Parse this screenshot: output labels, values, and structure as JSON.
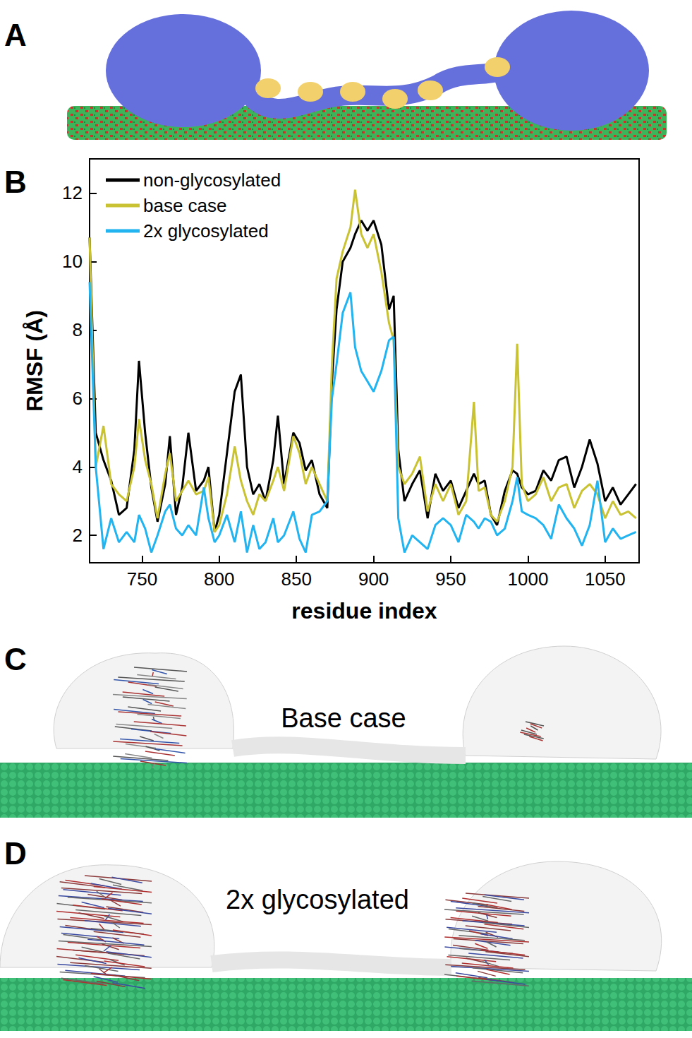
{
  "panel_labels": [
    "A",
    "B",
    "C",
    "D"
  ],
  "renderings": [
    {
      "panel": "C",
      "caption": "Base case"
    },
    {
      "panel": "D",
      "caption": "2x glycosylated"
    }
  ],
  "chart_data": {
    "type": "line",
    "x_label": "residue index",
    "y_label": "RMSF (Å)",
    "xlim": [
      716,
      1072
    ],
    "xticks": [
      750,
      800,
      850,
      900,
      950,
      1000,
      1050
    ],
    "ylim": [
      1.2,
      13
    ],
    "yticks": [
      2,
      4,
      6,
      8,
      10,
      12
    ],
    "grid": false,
    "legend": "top-left",
    "x": [
      716,
      720,
      725,
      730,
      735,
      740,
      745,
      748,
      752,
      756,
      760,
      765,
      768,
      772,
      776,
      780,
      785,
      790,
      793,
      797,
      800,
      805,
      810,
      814,
      818,
      822,
      826,
      830,
      835,
      838,
      842,
      848,
      852,
      856,
      860,
      865,
      870,
      873,
      876,
      880,
      885,
      888,
      892,
      896,
      900,
      905,
      910,
      913,
      916,
      920,
      925,
      930,
      935,
      940,
      945,
      950,
      955,
      960,
      965,
      968,
      972,
      976,
      980,
      985,
      990,
      993,
      996,
      1000,
      1005,
      1010,
      1015,
      1020,
      1025,
      1030,
      1035,
      1040,
      1045,
      1050,
      1055,
      1060,
      1065,
      1070
    ],
    "series": [
      {
        "name": "non-glycosylated",
        "color": "#000000",
        "values": [
          10.7,
          5.0,
          4.2,
          3.6,
          2.6,
          2.8,
          4.5,
          7.1,
          5.0,
          3.4,
          2.4,
          3.5,
          4.9,
          2.6,
          3.4,
          5.0,
          3.3,
          3.6,
          4.0,
          2.1,
          2.6,
          4.4,
          6.2,
          6.7,
          4.0,
          3.2,
          3.5,
          3.0,
          4.2,
          5.5,
          3.5,
          5.0,
          4.7,
          3.9,
          4.2,
          3.2,
          2.8,
          6.5,
          8.6,
          10.0,
          10.4,
          10.8,
          11.2,
          10.9,
          11.2,
          10.5,
          8.6,
          9.0,
          4.5,
          3.0,
          3.5,
          3.9,
          2.5,
          3.8,
          3.3,
          3.6,
          2.8,
          3.3,
          3.8,
          3.5,
          3.6,
          2.6,
          2.3,
          3.3,
          3.9,
          3.8,
          3.4,
          3.2,
          3.3,
          3.9,
          3.6,
          4.2,
          4.3,
          3.4,
          4.0,
          4.8,
          4.1,
          3.0,
          3.4,
          2.9,
          3.2,
          3.5
        ]
      },
      {
        "name": "base case",
        "color": "#c9c232",
        "values": [
          10.7,
          4.0,
          5.2,
          3.5,
          3.2,
          3.0,
          4.0,
          5.4,
          4.2,
          3.5,
          2.5,
          3.8,
          4.4,
          3.0,
          3.3,
          3.6,
          3.2,
          3.3,
          3.7,
          2.1,
          2.3,
          3.2,
          4.6,
          3.6,
          3.0,
          2.6,
          3.2,
          3.0,
          3.6,
          4.0,
          3.3,
          4.9,
          4.4,
          3.5,
          4.0,
          3.5,
          3.0,
          7.0,
          9.5,
          10.3,
          11.0,
          12.1,
          10.8,
          10.4,
          10.8,
          9.7,
          8.2,
          7.7,
          4.0,
          3.5,
          3.8,
          4.3,
          2.7,
          3.5,
          3.0,
          3.5,
          2.6,
          3.0,
          5.9,
          3.3,
          3.4,
          2.6,
          2.4,
          3.0,
          4.0,
          7.6,
          3.5,
          3.0,
          3.2,
          3.7,
          3.0,
          3.4,
          3.5,
          2.8,
          3.3,
          3.5,
          3.2,
          2.5,
          3.0,
          2.6,
          2.7,
          2.5
        ]
      },
      {
        "name": "2x glycosylated",
        "color": "#22b4f0",
        "values": [
          9.4,
          4.0,
          1.6,
          2.5,
          1.8,
          2.1,
          1.8,
          2.6,
          2.2,
          1.5,
          2.0,
          2.7,
          2.9,
          2.2,
          2.0,
          2.3,
          2.0,
          3.4,
          2.5,
          1.8,
          2.0,
          2.6,
          1.8,
          2.7,
          1.5,
          2.3,
          1.6,
          1.8,
          2.5,
          1.8,
          2.0,
          2.7,
          1.9,
          1.5,
          2.6,
          2.7,
          3.0,
          6.0,
          7.0,
          8.5,
          9.1,
          7.5,
          6.8,
          6.5,
          6.2,
          6.8,
          7.7,
          7.8,
          2.5,
          1.5,
          2.0,
          1.8,
          1.6,
          2.3,
          2.5,
          2.3,
          1.8,
          2.6,
          2.4,
          2.2,
          2.5,
          2.4,
          2.0,
          2.2,
          3.0,
          3.7,
          2.7,
          2.6,
          2.5,
          2.3,
          1.9,
          2.9,
          2.5,
          2.2,
          1.7,
          2.3,
          3.6,
          1.8,
          2.2,
          1.9,
          2.0,
          2.1
        ]
      }
    ]
  }
}
